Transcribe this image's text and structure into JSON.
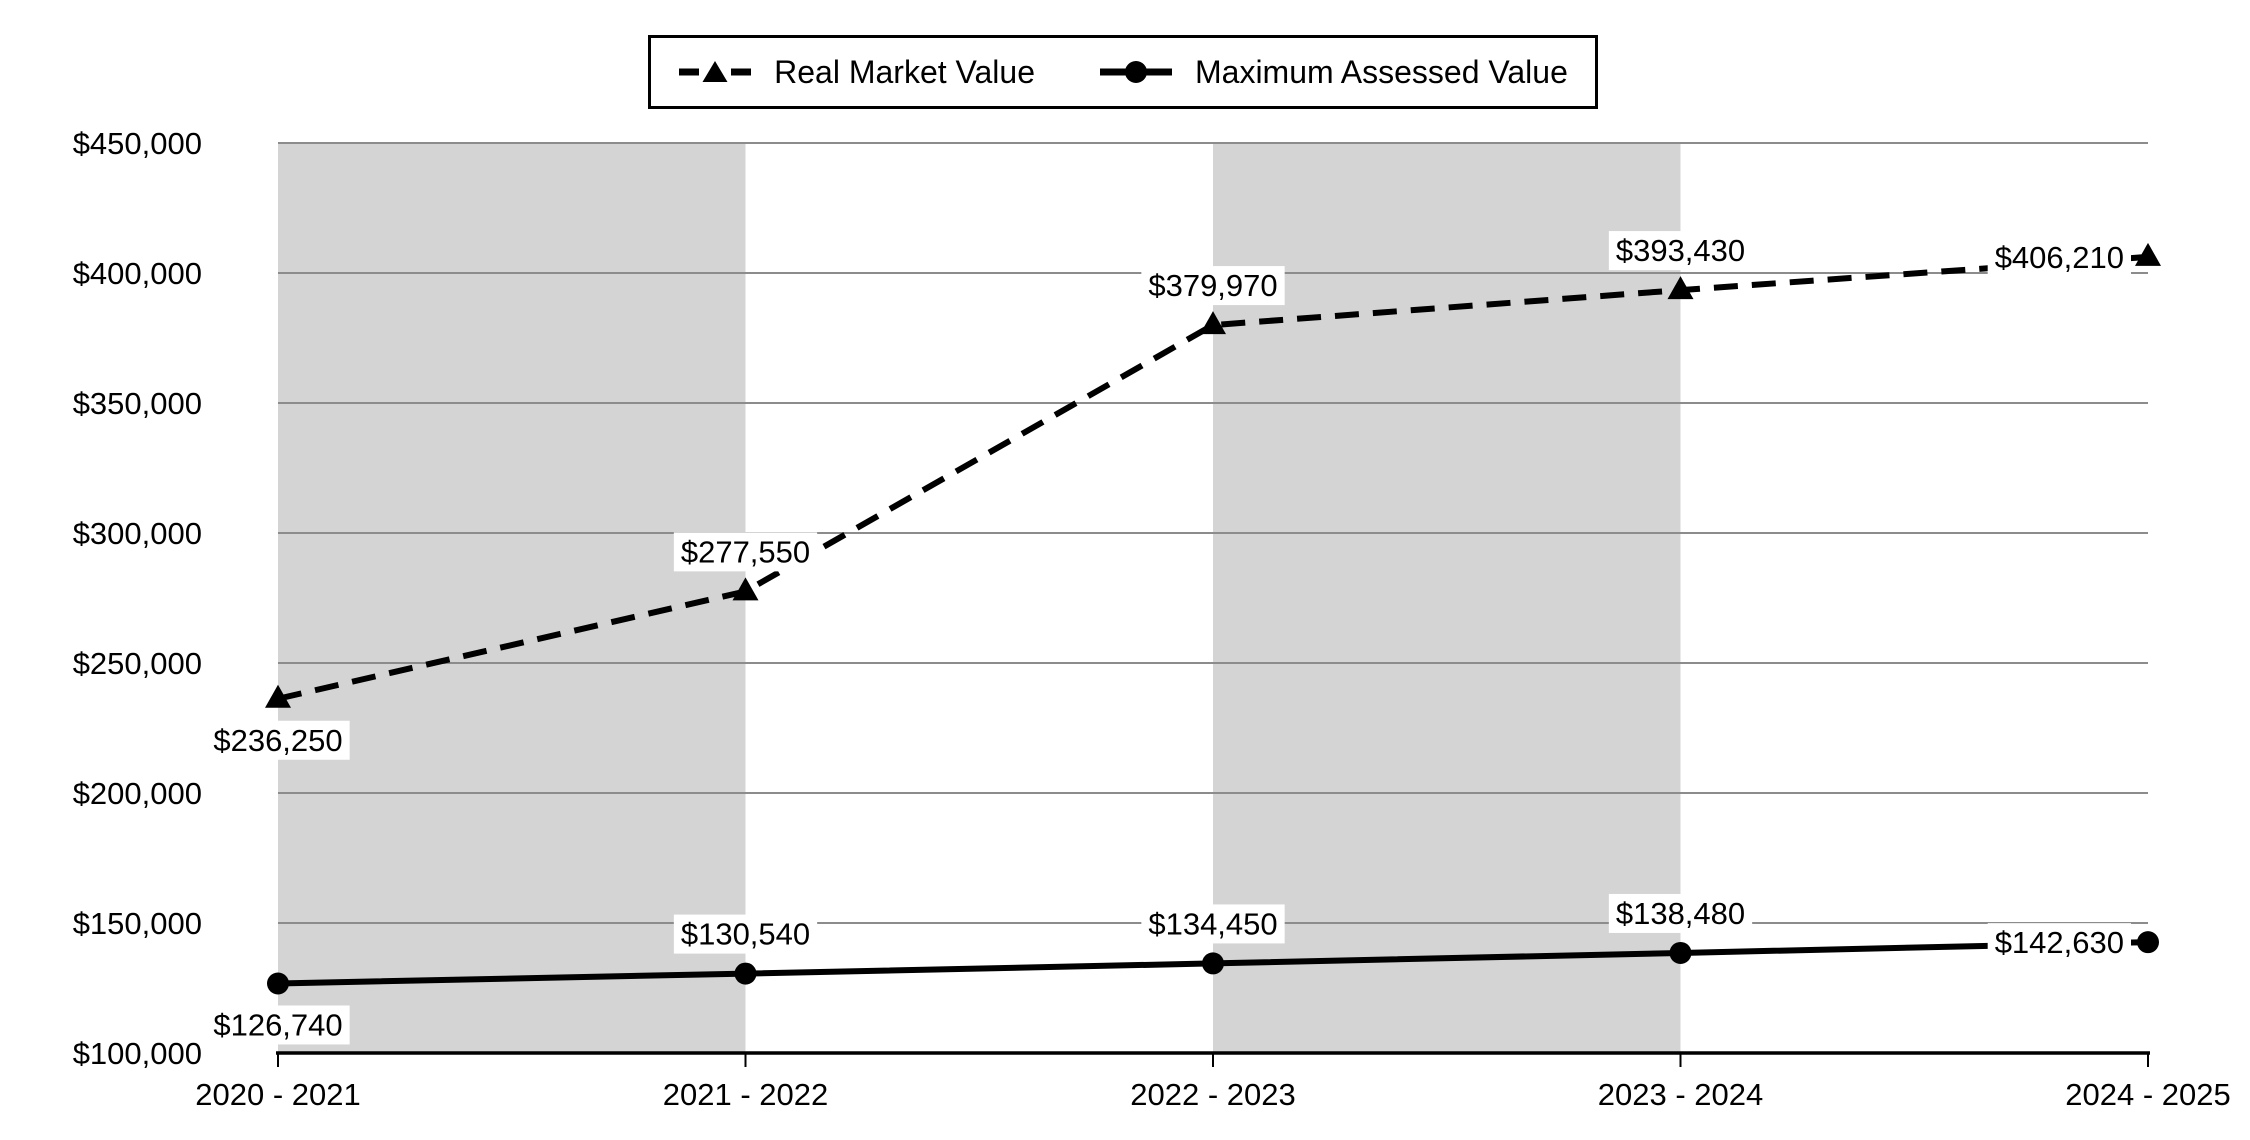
{
  "chart_data": {
    "type": "line",
    "title": "",
    "xlabel": "",
    "ylabel": "",
    "categories": [
      "2020 - 2021",
      "2021 - 2022",
      "2022 - 2023",
      "2023 - 2024",
      "2024 - 2025"
    ],
    "series": [
      {
        "name": "Real Market Value",
        "line_style": "dashed",
        "marker": "triangle",
        "color": "#000000",
        "values": [
          236250,
          277550,
          379970,
          393430,
          406210
        ],
        "data_labels": [
          "$236,250",
          "$277,550",
          "$379,970",
          "$393,430",
          "$406,210"
        ],
        "label_positions": [
          "below",
          "above",
          "above",
          "above",
          "left"
        ]
      },
      {
        "name": "Maximum Assessed Value",
        "line_style": "solid",
        "marker": "circle",
        "color": "#000000",
        "values": [
          126740,
          130540,
          134450,
          138480,
          142630
        ],
        "data_labels": [
          "$126,740",
          "$130,540",
          "$134,450",
          "$138,480",
          "$142,630"
        ],
        "label_positions": [
          "below",
          "above",
          "above",
          "above",
          "left"
        ]
      }
    ],
    "ylim": [
      100000,
      450000
    ],
    "ytick_step": 50000,
    "ytick_labels": [
      "$100,000",
      "$150,000",
      "$200,000",
      "$250,000",
      "$300,000",
      "$350,000",
      "$400,000",
      "$450,000"
    ],
    "grid": true,
    "gridline_color": "#8C8C8C",
    "axis_color": "#000000",
    "background_color": "#FFFFFF",
    "plot_bands": {
      "color": "#D4D4D4",
      "intervals": [
        [
          0,
          1
        ],
        [
          2,
          3
        ]
      ]
    },
    "legend_position": "top-center"
  }
}
